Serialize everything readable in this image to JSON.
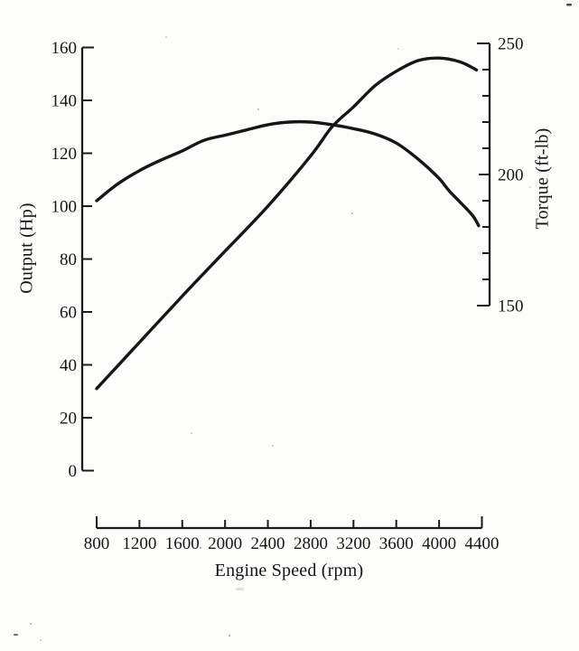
{
  "figure": {
    "background": "#fdfdfc",
    "ink_color": "#1b1b1b"
  },
  "chart_data": {
    "type": "line",
    "title": "",
    "grid": false,
    "legend": "none",
    "x_axis": {
      "label": "Engine Speed (rpm)",
      "min": 800,
      "max": 4400,
      "tick_step": 400,
      "ticks": [
        800,
        1200,
        1600,
        2000,
        2400,
        2800,
        3200,
        3600,
        4000,
        4400
      ]
    },
    "y_axis_left": {
      "label": "Output (Hp)",
      "min": 0,
      "max": 160,
      "tick_step": 20,
      "ticks": [
        0,
        20,
        40,
        60,
        80,
        100,
        120,
        140,
        160
      ]
    },
    "y_axis_right": {
      "label": "Torque (ft-lb)",
      "min": 150,
      "max": 250,
      "minor_tick_step": 10,
      "ticks": [
        150,
        160,
        170,
        180,
        190,
        200,
        210,
        220,
        230,
        240,
        250
      ],
      "labeled_ticks": [
        150,
        200,
        250
      ]
    },
    "series": [
      {
        "name": "Output (Hp)",
        "axis": "left",
        "color": "#161616",
        "points": [
          [
            800,
            31
          ],
          [
            1200,
            48.5
          ],
          [
            1600,
            66
          ],
          [
            2000,
            83
          ],
          [
            2400,
            100
          ],
          [
            2800,
            119
          ],
          [
            3000,
            130
          ],
          [
            3200,
            137.5
          ],
          [
            3400,
            145.5
          ],
          [
            3600,
            151
          ],
          [
            3800,
            155
          ],
          [
            4000,
            156
          ],
          [
            4200,
            154.5
          ],
          [
            4350,
            151.5
          ]
        ]
      },
      {
        "name": "Torque (ft-lb)",
        "axis": "right",
        "color": "#161616",
        "points": [
          [
            800,
            190
          ],
          [
            1000,
            196.5
          ],
          [
            1200,
            201.5
          ],
          [
            1400,
            205.5
          ],
          [
            1600,
            209
          ],
          [
            1800,
            213
          ],
          [
            2000,
            215
          ],
          [
            2200,
            217
          ],
          [
            2400,
            219
          ],
          [
            2600,
            220
          ],
          [
            2800,
            220
          ],
          [
            3000,
            219
          ],
          [
            3200,
            217.5
          ],
          [
            3400,
            215.5
          ],
          [
            3600,
            212
          ],
          [
            3800,
            206
          ],
          [
            4000,
            198.5
          ],
          [
            4100,
            193.5
          ],
          [
            4300,
            185
          ],
          [
            4370,
            180.5
          ]
        ]
      }
    ]
  }
}
